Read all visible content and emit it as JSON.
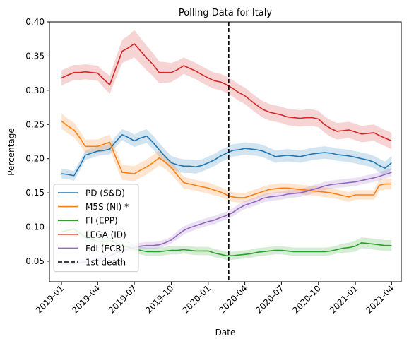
{
  "chart_data": {
    "type": "line",
    "title": "Polling Data for Italy",
    "xlabel": "Date",
    "ylabel": "Percentage",
    "xlim": [
      "2018-12-02",
      "2021-04-25"
    ],
    "ylim": [
      0.02,
      0.4
    ],
    "yticks": [
      "0.05",
      "0.10",
      "0.15",
      "0.20",
      "0.25",
      "0.30",
      "0.35",
      "0.40"
    ],
    "xticks": [
      "2019-01",
      "2019-04",
      "2019-07",
      "2019-10",
      "2020-01",
      "2020-04",
      "2020-07",
      "2020-10",
      "2021-01",
      "2021-04"
    ],
    "legend_position": "lower-left",
    "grid": false,
    "x": [
      "2019-01-01",
      "2019-01-16",
      "2019-02-01",
      "2019-02-16",
      "2019-03-01",
      "2019-03-16",
      "2019-04-01",
      "2019-04-16",
      "2019-05-01",
      "2019-05-16",
      "2019-06-01",
      "2019-06-16",
      "2019-07-01",
      "2019-07-16",
      "2019-08-01",
      "2019-08-16",
      "2019-09-01",
      "2019-09-16",
      "2019-10-01",
      "2019-10-16",
      "2019-11-01",
      "2019-11-16",
      "2019-12-01",
      "2019-12-16",
      "2020-01-01",
      "2020-01-16",
      "2020-02-01",
      "2020-02-16",
      "2020-03-01",
      "2020-03-16",
      "2020-04-01",
      "2020-04-16",
      "2020-05-01",
      "2020-05-16",
      "2020-06-01",
      "2020-06-16",
      "2020-07-01",
      "2020-07-16",
      "2020-08-01",
      "2020-08-16",
      "2020-09-01",
      "2020-09-16",
      "2020-10-01",
      "2020-10-16",
      "2020-11-01",
      "2020-11-16",
      "2020-12-01",
      "2020-12-16",
      "2021-01-01",
      "2021-01-16",
      "2021-02-01",
      "2021-02-16",
      "2021-03-01",
      "2021-03-16",
      "2021-04-01"
    ],
    "series": [
      {
        "name": "PD (S&D)",
        "color": "#1f77b4",
        "values": [
          0.178,
          0.177,
          0.175,
          0.19,
          0.205,
          0.208,
          0.211,
          0.212,
          0.214,
          0.225,
          0.235,
          0.231,
          0.226,
          0.23,
          0.233,
          0.224,
          0.213,
          0.203,
          0.194,
          0.191,
          0.189,
          0.189,
          0.188,
          0.19,
          0.194,
          0.198,
          0.204,
          0.208,
          0.212,
          0.213,
          0.215,
          0.214,
          0.213,
          0.211,
          0.207,
          0.203,
          0.204,
          0.205,
          0.204,
          0.203,
          0.205,
          0.207,
          0.208,
          0.209,
          0.208,
          0.206,
          0.205,
          0.204,
          0.202,
          0.2,
          0.198,
          0.195,
          0.19,
          0.186,
          0.194
        ],
        "band": [
          0.007,
          0.007,
          0.007,
          0.007,
          0.007,
          0.007,
          0.007,
          0.007,
          0.008,
          0.008,
          0.008,
          0.009,
          0.009,
          0.01,
          0.01,
          0.01,
          0.01,
          0.01,
          0.01,
          0.01,
          0.01,
          0.01,
          0.01,
          0.009,
          0.009,
          0.009,
          0.009,
          0.009,
          0.009,
          0.009,
          0.009,
          0.009,
          0.009,
          0.009,
          0.009,
          0.009,
          0.009,
          0.009,
          0.009,
          0.009,
          0.009,
          0.009,
          0.009,
          0.009,
          0.009,
          0.009,
          0.009,
          0.009,
          0.009,
          0.009,
          0.009,
          0.009,
          0.01,
          0.01,
          0.01
        ]
      },
      {
        "name": "M5S (NI) *",
        "color": "#ff7f0e",
        "values": [
          0.255,
          0.248,
          0.242,
          0.23,
          0.218,
          0.218,
          0.218,
          0.221,
          0.224,
          0.202,
          0.18,
          0.179,
          0.178,
          0.183,
          0.188,
          0.194,
          0.201,
          0.195,
          0.187,
          0.176,
          0.165,
          0.163,
          0.161,
          0.159,
          0.157,
          0.154,
          0.151,
          0.147,
          0.144,
          0.143,
          0.143,
          0.146,
          0.149,
          0.152,
          0.155,
          0.156,
          0.157,
          0.157,
          0.156,
          0.155,
          0.154,
          0.153,
          0.152,
          0.151,
          0.15,
          0.148,
          0.146,
          0.144,
          0.147,
          0.147,
          0.147,
          0.147,
          0.161,
          0.163,
          0.163
        ],
        "band": [
          0.011,
          0.011,
          0.011,
          0.01,
          0.01,
          0.01,
          0.01,
          0.011,
          0.011,
          0.011,
          0.011,
          0.011,
          0.011,
          0.011,
          0.011,
          0.011,
          0.011,
          0.01,
          0.01,
          0.009,
          0.009,
          0.008,
          0.008,
          0.008,
          0.008,
          0.008,
          0.007,
          0.007,
          0.007,
          0.007,
          0.007,
          0.007,
          0.007,
          0.007,
          0.007,
          0.007,
          0.007,
          0.007,
          0.007,
          0.007,
          0.007,
          0.007,
          0.007,
          0.007,
          0.007,
          0.007,
          0.007,
          0.007,
          0.007,
          0.007,
          0.007,
          0.007,
          0.008,
          0.008,
          0.008
        ]
      },
      {
        "name": "FI (EPP)",
        "color": "#2ca02c",
        "values": [
          0.093,
          0.095,
          0.097,
          0.091,
          0.085,
          0.082,
          0.079,
          0.079,
          0.08,
          0.077,
          0.073,
          0.071,
          0.068,
          0.066,
          0.064,
          0.064,
          0.064,
          0.065,
          0.066,
          0.066,
          0.067,
          0.066,
          0.065,
          0.065,
          0.065,
          0.062,
          0.06,
          0.058,
          0.058,
          0.059,
          0.06,
          0.061,
          0.063,
          0.064,
          0.065,
          0.066,
          0.066,
          0.065,
          0.064,
          0.064,
          0.064,
          0.064,
          0.064,
          0.064,
          0.065,
          0.067,
          0.069,
          0.07,
          0.072,
          0.077,
          0.076,
          0.075,
          0.074,
          0.073,
          0.073
        ],
        "band": [
          0.006,
          0.006,
          0.006,
          0.006,
          0.006,
          0.006,
          0.006,
          0.006,
          0.006,
          0.006,
          0.006,
          0.006,
          0.006,
          0.006,
          0.006,
          0.006,
          0.006,
          0.006,
          0.006,
          0.006,
          0.006,
          0.006,
          0.006,
          0.006,
          0.006,
          0.006,
          0.006,
          0.006,
          0.006,
          0.006,
          0.006,
          0.006,
          0.006,
          0.006,
          0.006,
          0.006,
          0.006,
          0.006,
          0.006,
          0.006,
          0.006,
          0.006,
          0.006,
          0.006,
          0.006,
          0.006,
          0.007,
          0.007,
          0.008,
          0.008,
          0.008,
          0.008,
          0.008,
          0.008,
          0.008
        ]
      },
      {
        "name": "LEGA (ID)",
        "color": "#d62728",
        "values": [
          0.318,
          0.322,
          0.326,
          0.326,
          0.327,
          0.326,
          0.325,
          0.316,
          0.308,
          0.332,
          0.357,
          0.362,
          0.368,
          0.358,
          0.347,
          0.338,
          0.326,
          0.326,
          0.326,
          0.33,
          0.336,
          0.332,
          0.328,
          0.323,
          0.318,
          0.314,
          0.312,
          0.308,
          0.303,
          0.297,
          0.292,
          0.285,
          0.278,
          0.272,
          0.268,
          0.266,
          0.264,
          0.261,
          0.26,
          0.259,
          0.26,
          0.26,
          0.258,
          0.25,
          0.244,
          0.24,
          0.241,
          0.242,
          0.239,
          0.236,
          0.237,
          0.238,
          0.234,
          0.23,
          0.226
        ],
        "band": [
          0.011,
          0.011,
          0.011,
          0.011,
          0.011,
          0.011,
          0.011,
          0.012,
          0.013,
          0.015,
          0.017,
          0.018,
          0.02,
          0.019,
          0.018,
          0.017,
          0.016,
          0.015,
          0.014,
          0.013,
          0.012,
          0.012,
          0.012,
          0.012,
          0.012,
          0.012,
          0.012,
          0.012,
          0.012,
          0.012,
          0.012,
          0.012,
          0.012,
          0.012,
          0.012,
          0.012,
          0.012,
          0.012,
          0.012,
          0.012,
          0.012,
          0.012,
          0.012,
          0.012,
          0.012,
          0.012,
          0.012,
          0.012,
          0.012,
          0.012,
          0.012,
          0.012,
          0.012,
          0.012,
          0.012
        ]
      },
      {
        "name": "FdI (ECR)",
        "color": "#9467bd",
        "values": [
          0.046,
          0.046,
          0.047,
          0.048,
          0.049,
          0.051,
          0.052,
          0.055,
          0.058,
          0.062,
          0.066,
          0.068,
          0.07,
          0.072,
          0.073,
          0.073,
          0.074,
          0.077,
          0.081,
          0.088,
          0.095,
          0.099,
          0.102,
          0.105,
          0.108,
          0.11,
          0.114,
          0.117,
          0.121,
          0.127,
          0.132,
          0.135,
          0.138,
          0.142,
          0.144,
          0.145,
          0.146,
          0.148,
          0.149,
          0.15,
          0.152,
          0.155,
          0.157,
          0.16,
          0.162,
          0.163,
          0.164,
          0.165,
          0.166,
          0.168,
          0.17,
          0.172,
          0.174,
          0.177,
          0.18
        ],
        "band": [
          0.005,
          0.005,
          0.005,
          0.005,
          0.005,
          0.005,
          0.005,
          0.005,
          0.005,
          0.005,
          0.005,
          0.005,
          0.005,
          0.005,
          0.005,
          0.005,
          0.005,
          0.005,
          0.005,
          0.006,
          0.006,
          0.006,
          0.006,
          0.006,
          0.006,
          0.006,
          0.006,
          0.006,
          0.006,
          0.006,
          0.006,
          0.006,
          0.006,
          0.006,
          0.006,
          0.006,
          0.006,
          0.006,
          0.006,
          0.006,
          0.006,
          0.006,
          0.006,
          0.006,
          0.006,
          0.006,
          0.006,
          0.006,
          0.006,
          0.006,
          0.006,
          0.006,
          0.006,
          0.006,
          0.006
        ]
      }
    ],
    "vline": {
      "x": "2020-02-21",
      "label": "1st death",
      "color": "#000000",
      "style": "dashed"
    }
  }
}
